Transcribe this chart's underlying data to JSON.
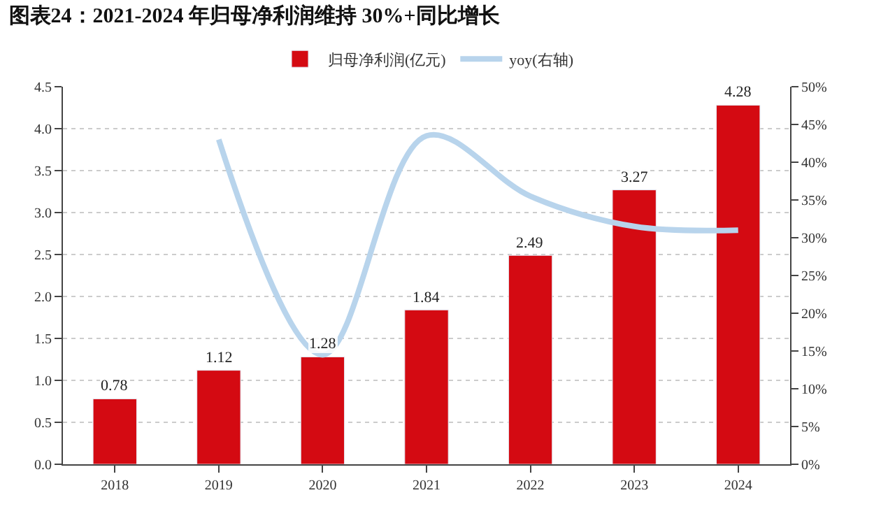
{
  "chart_data": {
    "type": "bar",
    "title": "图表24：2021-2024 年归母净利润维持 30%+同比增长",
    "categories": [
      "2018",
      "2019",
      "2020",
      "2021",
      "2022",
      "2023",
      "2024"
    ],
    "series": [
      {
        "name": "归母净利润(亿元)",
        "color": "#d40a12",
        "values": [
          0.78,
          1.12,
          1.28,
          1.84,
          2.49,
          3.27,
          4.28
        ],
        "value_labels": [
          "0.78",
          "1.12",
          "1.28",
          "1.84",
          "2.49",
          "3.27",
          "4.28"
        ]
      },
      {
        "name": "yoy(右轴)",
        "type": "line",
        "axis": "y2",
        "color": "#b8d4ec",
        "values": [
          null,
          43,
          14.5,
          43.5,
          35.5,
          31.5,
          31
        ]
      }
    ],
    "ylim": [
      0,
      4.5
    ],
    "yticks": [
      {
        "value": 0,
        "label": "0.0"
      },
      0.5,
      {
        "value": 1,
        "label": "1.0"
      },
      1.5,
      {
        "value": 2,
        "label": "2.0"
      },
      2.5,
      {
        "value": 3,
        "label": "3.0"
      },
      3.5,
      {
        "value": 4,
        "label": "4.0"
      },
      4.5
    ],
    "y2lim": [
      0,
      50
    ],
    "y2ticks": [
      {
        "value": 0,
        "label": "0%"
      },
      {
        "value": 5,
        "label": "5%"
      },
      {
        "value": 10,
        "label": "10%"
      },
      {
        "value": 15,
        "label": "15%"
      },
      {
        "value": 20,
        "label": "20%"
      },
      {
        "value": 25,
        "label": "25%"
      },
      {
        "value": 30,
        "label": "30%"
      },
      {
        "value": 35,
        "label": "35%"
      },
      {
        "value": 40,
        "label": "40%"
      },
      {
        "value": 45,
        "label": "45%"
      },
      {
        "value": 50,
        "label": "50%"
      }
    ],
    "grid": "y",
    "legend": "top"
  }
}
